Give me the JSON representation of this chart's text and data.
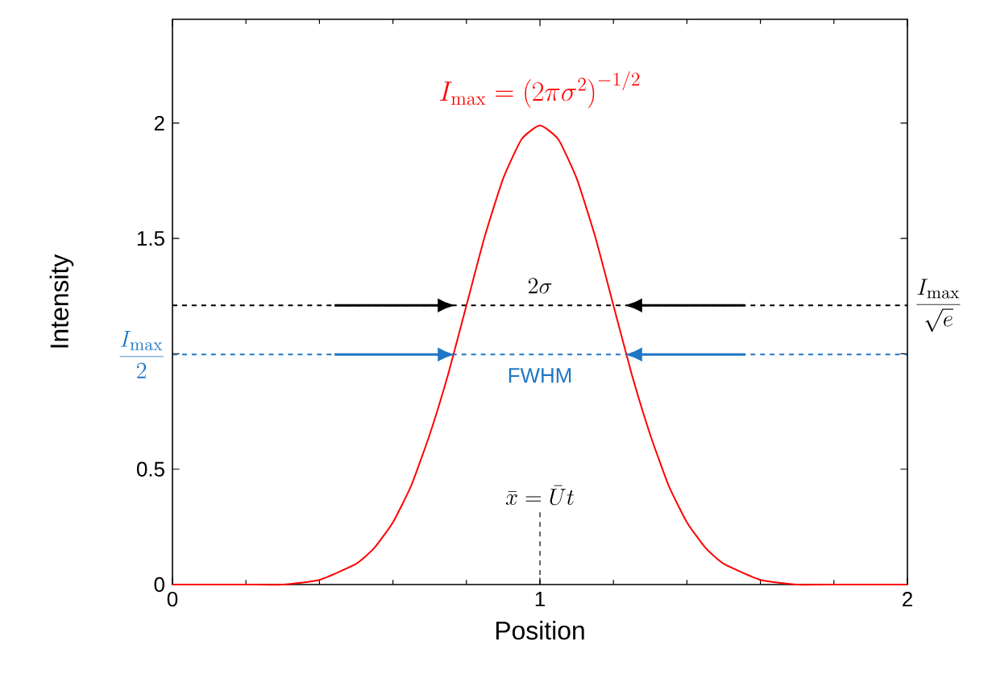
{
  "chart_data": {
    "type": "line",
    "xlabel": "Position",
    "ylabel": "Intensity",
    "xlim": [
      0,
      2
    ],
    "ylim": [
      0,
      2.45
    ],
    "xticks": [
      0,
      1,
      2
    ],
    "yticks": [
      0,
      0.5,
      {
        "value": 1,
        "label": null
      },
      1.5,
      2
    ],
    "series": [
      {
        "color": "#ff0000",
        "x": [
          0,
          0.2,
          0.3,
          0.4,
          0.5,
          0.55,
          0.6,
          0.65,
          0.7,
          0.75,
          0.8,
          0.85,
          0.9,
          0.95,
          1,
          1.05,
          1.1,
          1.15,
          1.2,
          1.25,
          1.3,
          1.35,
          1.4,
          1.45,
          1.5,
          1.6,
          1.7,
          1.8,
          2
        ],
        "values": [
          0,
          0,
          0,
          0.02,
          0.09,
          0.16,
          0.27,
          0.43,
          0.65,
          0.91,
          1.21,
          1.51,
          1.76,
          1.93,
          1.99,
          1.93,
          1.76,
          1.51,
          1.21,
          0.91,
          0.65,
          0.43,
          0.27,
          0.16,
          0.09,
          0.02,
          0,
          0,
          0
        ]
      }
    ],
    "ref_lines": [
      {
        "axis": "y",
        "value": 1.21,
        "label": "\\frac{I_{\\max}}{\\sqrt{e}}",
        "color": "#000000",
        "line_style": "dashed"
      },
      {
        "axis": "y",
        "value": 0.997,
        "label": "\\frac{I_{\\max}}{2}",
        "color": "#1f77c4",
        "line_style": "dashed"
      },
      {
        "axis": "x",
        "value": 1,
        "label": "\\bar{x} = \\bar{U} t",
        "color": "#000000",
        "line_style": "dashed"
      }
    ],
    "annotations": [
      "I_{\\max} = \\left(2\\pi\\sigma^2\\right)^{-1/2}",
      {
        "text": "2\\sigma",
        "x": 1,
        "y": 1.21
      },
      {
        "text": "FWHM",
        "x": 1,
        "y": 0.997
      }
    ]
  }
}
